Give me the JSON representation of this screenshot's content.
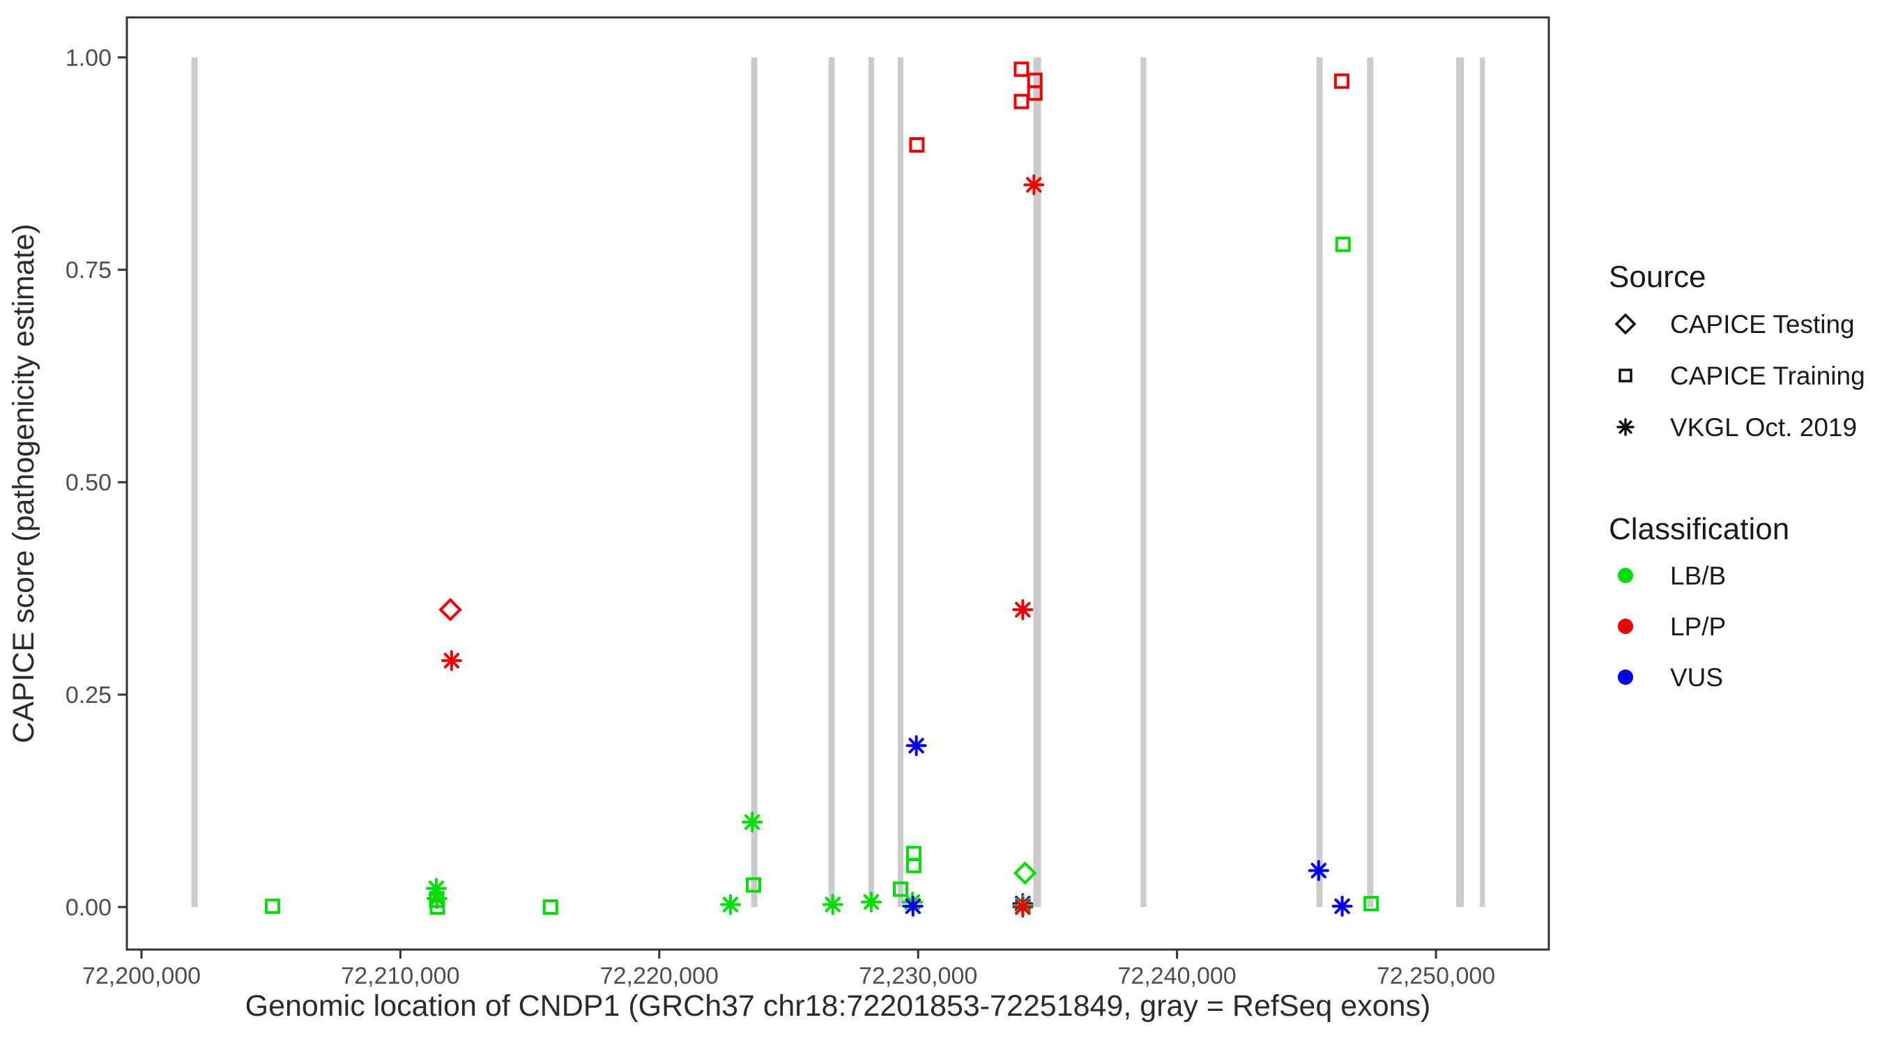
{
  "chart_data": {
    "type": "scatter",
    "title": "",
    "xlabel": "Genomic location of CNDP1 (GRCh37 chr18:72201853-72251849, gray = RefSeq exons)",
    "ylabel": "CAPICE score (pathogenicity estimate)",
    "xlim": [
      72199435,
      72254360
    ],
    "ylim": [
      -0.05,
      1.047
    ],
    "grid": false,
    "x_ticks": [
      {
        "value": 72200000,
        "label": "72,200,000"
      },
      {
        "value": 72210000,
        "label": "72,210,000"
      },
      {
        "value": 72220000,
        "label": "72,220,000"
      },
      {
        "value": 72230000,
        "label": "72,230,000"
      },
      {
        "value": 72240000,
        "label": "72,240,000"
      },
      {
        "value": 72250000,
        "label": "72,250,000"
      }
    ],
    "y_ticks": [
      {
        "value": 0.0,
        "label": "0.00"
      },
      {
        "value": 0.25,
        "label": "0.25"
      },
      {
        "value": 0.5,
        "label": "0.50"
      },
      {
        "value": 0.75,
        "label": "0.75"
      },
      {
        "value": 1.0,
        "label": "1.00"
      }
    ],
    "exons": [
      {
        "start": 72201930,
        "end": 72202170
      },
      {
        "start": 72223550,
        "end": 72223790
      },
      {
        "start": 72226540,
        "end": 72226780
      },
      {
        "start": 72228080,
        "end": 72228300
      },
      {
        "start": 72229210,
        "end": 72229430
      },
      {
        "start": 72234450,
        "end": 72234750
      },
      {
        "start": 72238590,
        "end": 72238810
      },
      {
        "start": 72245380,
        "end": 72245620
      },
      {
        "start": 72247340,
        "end": 72247580
      },
      {
        "start": 72250780,
        "end": 72251080
      },
      {
        "start": 72251700,
        "end": 72251890
      }
    ],
    "points": [
      {
        "x": 72211930,
        "y": 0.35,
        "source": "CAPICE Testing",
        "classification": "LP/P"
      },
      {
        "x": 72234130,
        "y": 0.04,
        "source": "CAPICE Testing",
        "classification": "LB/B"
      },
      {
        "x": 72211980,
        "y": 0.29,
        "source": "VKGL Oct. 2019",
        "classification": "LP/P"
      },
      {
        "x": 72211390,
        "y": 0.022,
        "source": "VKGL Oct. 2019",
        "classification": "LB/B"
      },
      {
        "x": 72211410,
        "y": 0.01,
        "source": "VKGL Oct. 2019",
        "classification": "LB/B"
      },
      {
        "x": 72222750,
        "y": 0.003,
        "source": "VKGL Oct. 2019",
        "classification": "LB/B"
      },
      {
        "x": 72223590,
        "y": 0.1,
        "source": "VKGL Oct. 2019",
        "classification": "LB/B"
      },
      {
        "x": 72226700,
        "y": 0.003,
        "source": "VKGL Oct. 2019",
        "classification": "LB/B"
      },
      {
        "x": 72228190,
        "y": 0.006,
        "source": "VKGL Oct. 2019",
        "classification": "LB/B"
      },
      {
        "x": 72229780,
        "y": 0.006,
        "source": "VKGL Oct. 2019",
        "classification": "LB/B"
      },
      {
        "x": 72229800,
        "y": 0.001,
        "source": "VKGL Oct. 2019",
        "classification": "VUS"
      },
      {
        "x": 72229930,
        "y": 0.19,
        "source": "VKGL Oct. 2019",
        "classification": "VUS"
      },
      {
        "x": 72234470,
        "y": 0.85,
        "source": "VKGL Oct. 2019",
        "classification": "LP/P"
      },
      {
        "x": 72234040,
        "y": 0.35,
        "source": "VKGL Oct. 2019",
        "classification": "LP/P"
      },
      {
        "x": 72234040,
        "y": 0.004,
        "source": "VKGL Oct. 2019",
        "classification": "VUS"
      },
      {
        "x": 72234050,
        "y": 0.002,
        "source": "VKGL Oct. 2019",
        "classification": "LB/B"
      },
      {
        "x": 72234040,
        "y": 0.0,
        "source": "VKGL Oct. 2019",
        "classification": "LP/P"
      },
      {
        "x": 72245470,
        "y": 0.043,
        "source": "VKGL Oct. 2019",
        "classification": "VUS"
      },
      {
        "x": 72246380,
        "y": 0.001,
        "source": "VKGL Oct. 2019",
        "classification": "VUS"
      },
      {
        "x": 72205060,
        "y": 0.001,
        "source": "CAPICE Training",
        "classification": "LB/B"
      },
      {
        "x": 72211400,
        "y": 0.008,
        "source": "CAPICE Training",
        "classification": "LB/B"
      },
      {
        "x": 72211430,
        "y": 0.0,
        "source": "CAPICE Training",
        "classification": "LB/B"
      },
      {
        "x": 72215800,
        "y": 0.0,
        "source": "CAPICE Training",
        "classification": "LB/B"
      },
      {
        "x": 72223640,
        "y": 0.026,
        "source": "CAPICE Training",
        "classification": "LB/B"
      },
      {
        "x": 72229320,
        "y": 0.021,
        "source": "CAPICE Training",
        "classification": "LB/B"
      },
      {
        "x": 72229830,
        "y": 0.063,
        "source": "CAPICE Training",
        "classification": "LB/B"
      },
      {
        "x": 72229830,
        "y": 0.049,
        "source": "CAPICE Training",
        "classification": "LB/B"
      },
      {
        "x": 72229950,
        "y": 0.897,
        "source": "CAPICE Training",
        "classification": "LP/P"
      },
      {
        "x": 72233990,
        "y": 0.986,
        "source": "CAPICE Training",
        "classification": "LP/P"
      },
      {
        "x": 72234510,
        "y": 0.973,
        "source": "CAPICE Training",
        "classification": "LP/P"
      },
      {
        "x": 72234510,
        "y": 0.958,
        "source": "CAPICE Training",
        "classification": "LP/P"
      },
      {
        "x": 72233990,
        "y": 0.948,
        "source": "CAPICE Training",
        "classification": "LP/P"
      },
      {
        "x": 72246360,
        "y": 0.972,
        "source": "CAPICE Training",
        "classification": "LP/P"
      },
      {
        "x": 72246410,
        "y": 0.78,
        "source": "CAPICE Training",
        "classification": "LB/B"
      },
      {
        "x": 72247500,
        "y": 0.004,
        "source": "CAPICE Training",
        "classification": "LB/B"
      }
    ]
  },
  "legend": {
    "source": {
      "title": "Source",
      "items": [
        {
          "label": "CAPICE Testing",
          "shape": "diamond"
        },
        {
          "label": "CAPICE Training",
          "shape": "square"
        },
        {
          "label": "VKGL Oct. 2019",
          "shape": "asterisk"
        }
      ]
    },
    "classification": {
      "title": "Classification",
      "items": [
        {
          "label": "LB/B",
          "color": "#00DD00"
        },
        {
          "label": "LP/P",
          "color": "#EE0000"
        },
        {
          "label": "VUS",
          "color": "#0000EE"
        }
      ]
    }
  },
  "colors": {
    "LB/B": "#00DD00",
    "LP/P": "#EE0000",
    "VUS": "#0000EE",
    "exon": "#CBCBCB",
    "tick_text": "#4D4D4D",
    "axis_text": "#2B2B2B",
    "panel_border": "#333333"
  }
}
